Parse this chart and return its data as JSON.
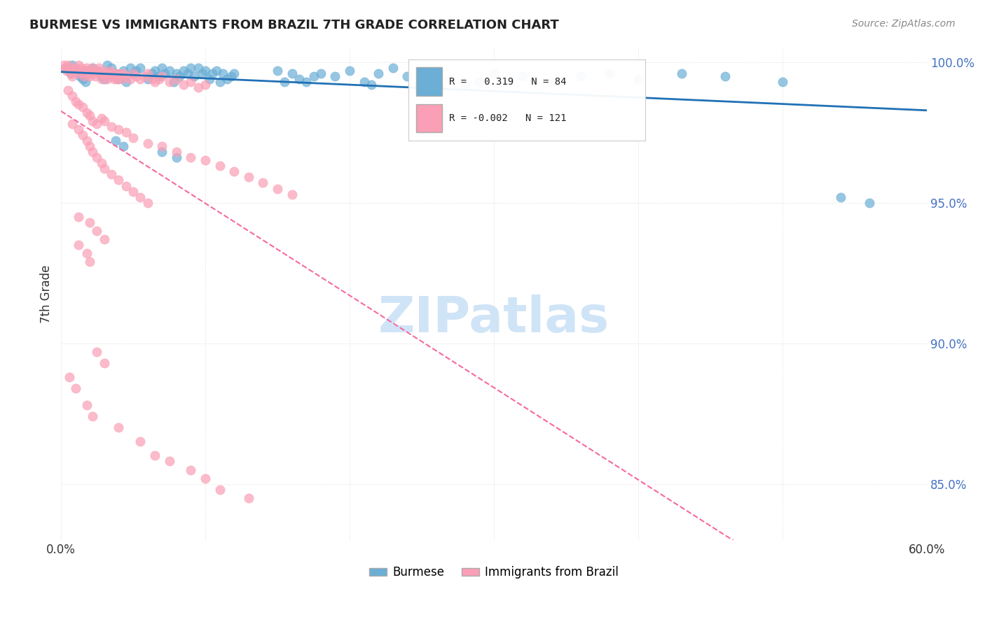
{
  "title": "BURMESE VS IMMIGRANTS FROM BRAZIL 7TH GRADE CORRELATION CHART",
  "source": "Source: ZipAtlas.com",
  "ylabel": "7th Grade",
  "x_min": 0.0,
  "x_max": 0.6,
  "y_min": 0.83,
  "y_max": 1.005,
  "x_ticks": [
    0.0,
    0.1,
    0.2,
    0.3,
    0.4,
    0.5,
    0.6
  ],
  "x_tick_labels": [
    "0.0%",
    "",
    "",
    "",
    "",
    "",
    "60.0%"
  ],
  "y_ticks": [
    0.85,
    0.9,
    0.95,
    1.0
  ],
  "y_tick_labels": [
    "85.0%",
    "90.0%",
    "95.0%",
    "100.0%"
  ],
  "blue_R": 0.319,
  "blue_N": 84,
  "pink_R": -0.002,
  "pink_N": 121,
  "blue_color": "#6baed6",
  "pink_color": "#fa9fb5",
  "blue_line_color": "#2171b5",
  "pink_line_color": "#f768a1",
  "watermark": "ZIPatlas",
  "watermark_color": "#d0e4f7",
  "grid_color": "#e0e0e0",
  "blue_scatter": [
    [
      0.003,
      0.998
    ],
    [
      0.005,
      0.998
    ],
    [
      0.007,
      0.996
    ],
    [
      0.008,
      0.999
    ],
    [
      0.01,
      0.997
    ],
    [
      0.012,
      0.996
    ],
    [
      0.013,
      0.995
    ],
    [
      0.015,
      0.994
    ],
    [
      0.017,
      0.993
    ],
    [
      0.018,
      0.997
    ],
    [
      0.02,
      0.996
    ],
    [
      0.022,
      0.998
    ],
    [
      0.025,
      0.997
    ],
    [
      0.028,
      0.995
    ],
    [
      0.03,
      0.994
    ],
    [
      0.032,
      0.999
    ],
    [
      0.035,
      0.998
    ],
    [
      0.038,
      0.996
    ],
    [
      0.04,
      0.994
    ],
    [
      0.043,
      0.997
    ],
    [
      0.045,
      0.993
    ],
    [
      0.048,
      0.998
    ],
    [
      0.05,
      0.996
    ],
    [
      0.052,
      0.997
    ],
    [
      0.055,
      0.998
    ],
    [
      0.06,
      0.994
    ],
    [
      0.063,
      0.996
    ],
    [
      0.065,
      0.997
    ],
    [
      0.068,
      0.995
    ],
    [
      0.07,
      0.998
    ],
    [
      0.072,
      0.996
    ],
    [
      0.075,
      0.997
    ],
    [
      0.078,
      0.993
    ],
    [
      0.08,
      0.996
    ],
    [
      0.082,
      0.995
    ],
    [
      0.085,
      0.997
    ],
    [
      0.088,
      0.996
    ],
    [
      0.09,
      0.998
    ],
    [
      0.092,
      0.995
    ],
    [
      0.095,
      0.998
    ],
    [
      0.098,
      0.996
    ],
    [
      0.1,
      0.997
    ],
    [
      0.103,
      0.994
    ],
    [
      0.105,
      0.996
    ],
    [
      0.108,
      0.997
    ],
    [
      0.11,
      0.993
    ],
    [
      0.112,
      0.996
    ],
    [
      0.115,
      0.994
    ],
    [
      0.118,
      0.995
    ],
    [
      0.12,
      0.996
    ],
    [
      0.15,
      0.997
    ],
    [
      0.155,
      0.993
    ],
    [
      0.16,
      0.996
    ],
    [
      0.165,
      0.994
    ],
    [
      0.17,
      0.993
    ],
    [
      0.175,
      0.995
    ],
    [
      0.18,
      0.996
    ],
    [
      0.19,
      0.995
    ],
    [
      0.2,
      0.997
    ],
    [
      0.21,
      0.993
    ],
    [
      0.215,
      0.992
    ],
    [
      0.22,
      0.996
    ],
    [
      0.23,
      0.998
    ],
    [
      0.24,
      0.995
    ],
    [
      0.25,
      0.996
    ],
    [
      0.26,
      0.997
    ],
    [
      0.27,
      0.994
    ],
    [
      0.28,
      0.992
    ],
    [
      0.29,
      0.993
    ],
    [
      0.3,
      0.996
    ],
    [
      0.32,
      0.995
    ],
    [
      0.34,
      0.993
    ],
    [
      0.36,
      0.995
    ],
    [
      0.38,
      0.996
    ],
    [
      0.4,
      0.994
    ],
    [
      0.43,
      0.996
    ],
    [
      0.46,
      0.995
    ],
    [
      0.5,
      0.993
    ],
    [
      0.54,
      0.952
    ],
    [
      0.56,
      0.95
    ],
    [
      0.038,
      0.972
    ],
    [
      0.043,
      0.97
    ],
    [
      0.07,
      0.968
    ],
    [
      0.08,
      0.966
    ]
  ],
  "pink_scatter": [
    [
      0.002,
      0.999
    ],
    [
      0.003,
      0.998
    ],
    [
      0.004,
      0.997
    ],
    [
      0.005,
      0.999
    ],
    [
      0.006,
      0.998
    ],
    [
      0.007,
      0.996
    ],
    [
      0.008,
      0.995
    ],
    [
      0.009,
      0.997
    ],
    [
      0.01,
      0.998
    ],
    [
      0.011,
      0.996
    ],
    [
      0.012,
      0.999
    ],
    [
      0.013,
      0.997
    ],
    [
      0.014,
      0.998
    ],
    [
      0.015,
      0.996
    ],
    [
      0.016,
      0.995
    ],
    [
      0.017,
      0.997
    ],
    [
      0.018,
      0.998
    ],
    [
      0.019,
      0.996
    ],
    [
      0.02,
      0.995
    ],
    [
      0.021,
      0.997
    ],
    [
      0.022,
      0.998
    ],
    [
      0.023,
      0.996
    ],
    [
      0.024,
      0.995
    ],
    [
      0.025,
      0.997
    ],
    [
      0.026,
      0.998
    ],
    [
      0.027,
      0.996
    ],
    [
      0.028,
      0.994
    ],
    [
      0.029,
      0.997
    ],
    [
      0.03,
      0.995
    ],
    [
      0.031,
      0.996
    ],
    [
      0.032,
      0.994
    ],
    [
      0.033,
      0.996
    ],
    [
      0.034,
      0.997
    ],
    [
      0.035,
      0.995
    ],
    [
      0.036,
      0.996
    ],
    [
      0.037,
      0.994
    ],
    [
      0.038,
      0.996
    ],
    [
      0.039,
      0.994
    ],
    [
      0.04,
      0.995
    ],
    [
      0.041,
      0.996
    ],
    [
      0.042,
      0.994
    ],
    [
      0.043,
      0.996
    ],
    [
      0.045,
      0.995
    ],
    [
      0.048,
      0.994
    ],
    [
      0.05,
      0.996
    ],
    [
      0.052,
      0.995
    ],
    [
      0.055,
      0.994
    ],
    [
      0.058,
      0.995
    ],
    [
      0.06,
      0.996
    ],
    [
      0.063,
      0.994
    ],
    [
      0.065,
      0.993
    ],
    [
      0.068,
      0.994
    ],
    [
      0.07,
      0.995
    ],
    [
      0.075,
      0.993
    ],
    [
      0.08,
      0.994
    ],
    [
      0.085,
      0.992
    ],
    [
      0.09,
      0.993
    ],
    [
      0.095,
      0.991
    ],
    [
      0.1,
      0.992
    ],
    [
      0.005,
      0.99
    ],
    [
      0.008,
      0.988
    ],
    [
      0.01,
      0.986
    ],
    [
      0.012,
      0.985
    ],
    [
      0.015,
      0.984
    ],
    [
      0.018,
      0.982
    ],
    [
      0.02,
      0.981
    ],
    [
      0.022,
      0.979
    ],
    [
      0.025,
      0.978
    ],
    [
      0.028,
      0.98
    ],
    [
      0.03,
      0.979
    ],
    [
      0.035,
      0.977
    ],
    [
      0.04,
      0.976
    ],
    [
      0.045,
      0.975
    ],
    [
      0.05,
      0.973
    ],
    [
      0.06,
      0.971
    ],
    [
      0.07,
      0.97
    ],
    [
      0.08,
      0.968
    ],
    [
      0.09,
      0.966
    ],
    [
      0.1,
      0.965
    ],
    [
      0.11,
      0.963
    ],
    [
      0.12,
      0.961
    ],
    [
      0.13,
      0.959
    ],
    [
      0.14,
      0.957
    ],
    [
      0.15,
      0.955
    ],
    [
      0.16,
      0.953
    ],
    [
      0.008,
      0.978
    ],
    [
      0.012,
      0.976
    ],
    [
      0.015,
      0.974
    ],
    [
      0.018,
      0.972
    ],
    [
      0.02,
      0.97
    ],
    [
      0.022,
      0.968
    ],
    [
      0.025,
      0.966
    ],
    [
      0.028,
      0.964
    ],
    [
      0.03,
      0.962
    ],
    [
      0.035,
      0.96
    ],
    [
      0.04,
      0.958
    ],
    [
      0.045,
      0.956
    ],
    [
      0.05,
      0.954
    ],
    [
      0.055,
      0.952
    ],
    [
      0.06,
      0.95
    ],
    [
      0.012,
      0.945
    ],
    [
      0.02,
      0.943
    ],
    [
      0.025,
      0.94
    ],
    [
      0.03,
      0.937
    ],
    [
      0.012,
      0.935
    ],
    [
      0.018,
      0.932
    ],
    [
      0.02,
      0.929
    ],
    [
      0.025,
      0.897
    ],
    [
      0.03,
      0.893
    ],
    [
      0.006,
      0.888
    ],
    [
      0.01,
      0.884
    ],
    [
      0.018,
      0.878
    ],
    [
      0.022,
      0.874
    ],
    [
      0.04,
      0.87
    ],
    [
      0.055,
      0.865
    ],
    [
      0.065,
      0.86
    ],
    [
      0.075,
      0.858
    ],
    [
      0.09,
      0.855
    ],
    [
      0.1,
      0.852
    ],
    [
      0.11,
      0.848
    ],
    [
      0.13,
      0.845
    ]
  ]
}
